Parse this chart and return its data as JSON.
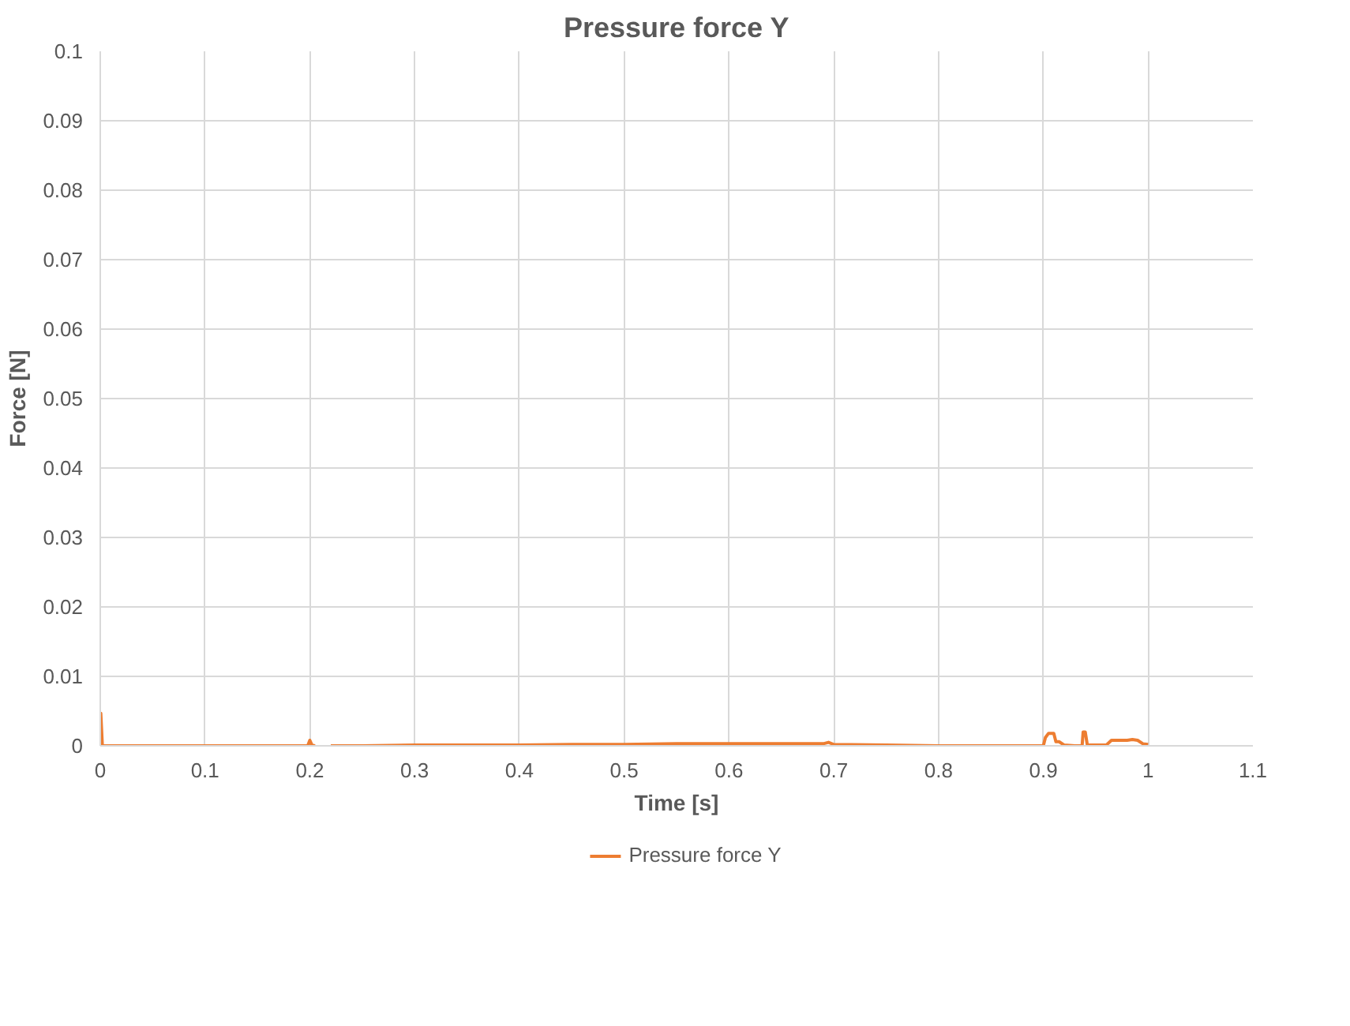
{
  "chart_data": {
    "type": "line",
    "title": "Pressure force Y",
    "xlabel": "Time [s]",
    "ylabel": "Force [N]",
    "xlim": [
      0,
      1.1
    ],
    "ylim": [
      0,
      0.1
    ],
    "xticks": [
      0,
      0.1,
      0.2,
      0.3,
      0.4,
      0.5,
      0.6,
      0.7,
      0.8,
      0.9,
      1,
      1.1
    ],
    "yticks": [
      0,
      0.01,
      0.02,
      0.03,
      0.04,
      0.05,
      0.06,
      0.07,
      0.08,
      0.09,
      0.1
    ],
    "grid": true,
    "legend": "bottom",
    "marker": "none",
    "line_style": "solid",
    "series": [
      {
        "name": "Pressure force Y",
        "color": "#ed7d31",
        "x": [
          0,
          0.0005,
          0.002,
          0.05,
          0.1,
          0.15,
          0.198,
          0.2,
          0.202,
          0.205,
          0.21,
          0.22,
          0.25,
          0.3,
          0.35,
          0.4,
          0.45,
          0.5,
          0.55,
          0.6,
          0.65,
          0.69,
          0.695,
          0.7,
          0.75,
          0.8,
          0.85,
          0.9,
          0.902,
          0.905,
          0.91,
          0.912,
          0.915,
          0.92,
          0.93,
          0.937,
          0.938,
          0.94,
          0.942,
          0.95,
          0.96,
          0.965,
          0.97,
          0.98,
          0.985,
          0.99,
          0.995,
          1.0
        ],
        "values": [
          0.0047,
          0.0047,
          0.0,
          0.0,
          0.0,
          0.0,
          0.0,
          0.0008,
          0.0001,
          0.0,
          null,
          0.0,
          0.0,
          0.0001,
          0.0001,
          0.0001,
          0.0002,
          0.0002,
          0.0003,
          0.0003,
          0.0003,
          0.0003,
          0.0005,
          0.0002,
          0.0001,
          0.0,
          0.0,
          0.0,
          0.0012,
          0.0018,
          0.0018,
          0.0006,
          0.0006,
          0.0001,
          0.0,
          0.0,
          0.002,
          0.002,
          0.0001,
          0.0001,
          0.0001,
          0.0008,
          0.0008,
          0.0008,
          0.0009,
          0.0008,
          0.0003,
          0.0002
        ]
      }
    ]
  }
}
